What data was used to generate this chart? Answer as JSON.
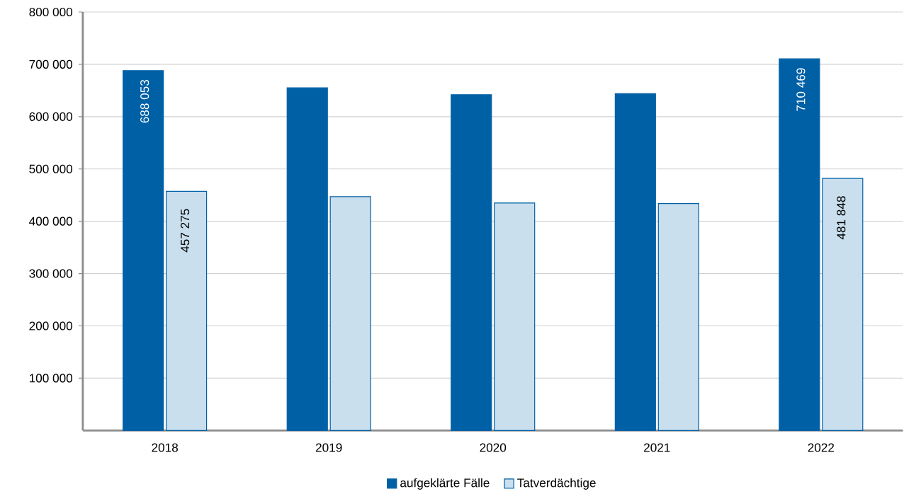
{
  "chart_data": {
    "type": "bar",
    "categories": [
      "2018",
      "2019",
      "2020",
      "2021",
      "2022"
    ],
    "series": [
      {
        "name": "aufgeklärte Fälle",
        "color": "#0060a6",
        "values": [
          688053,
          655000,
          642000,
          644000,
          710469
        ],
        "value_labels": [
          "688 053",
          null,
          null,
          null,
          "710 469"
        ]
      },
      {
        "name": "Tatverdächtige",
        "color": "#c9dfee",
        "values": [
          457275,
          447000,
          435000,
          434000,
          481848
        ],
        "value_labels": [
          "457 275",
          null,
          null,
          null,
          "481 848"
        ]
      }
    ],
    "ylim": [
      0,
      800000
    ],
    "yticks": [
      {
        "value": 100000,
        "label": "100 000"
      },
      {
        "value": 200000,
        "label": "200 000"
      },
      {
        "value": 300000,
        "label": "300 000"
      },
      {
        "value": 400000,
        "label": "400 000"
      },
      {
        "value": 500000,
        "label": "500 000"
      },
      {
        "value": 600000,
        "label": "600 000"
      },
      {
        "value": 700000,
        "label": "700 000"
      },
      {
        "value": 800000,
        "label": "800 000"
      }
    ],
    "grid": "y",
    "legend": "bottom"
  }
}
